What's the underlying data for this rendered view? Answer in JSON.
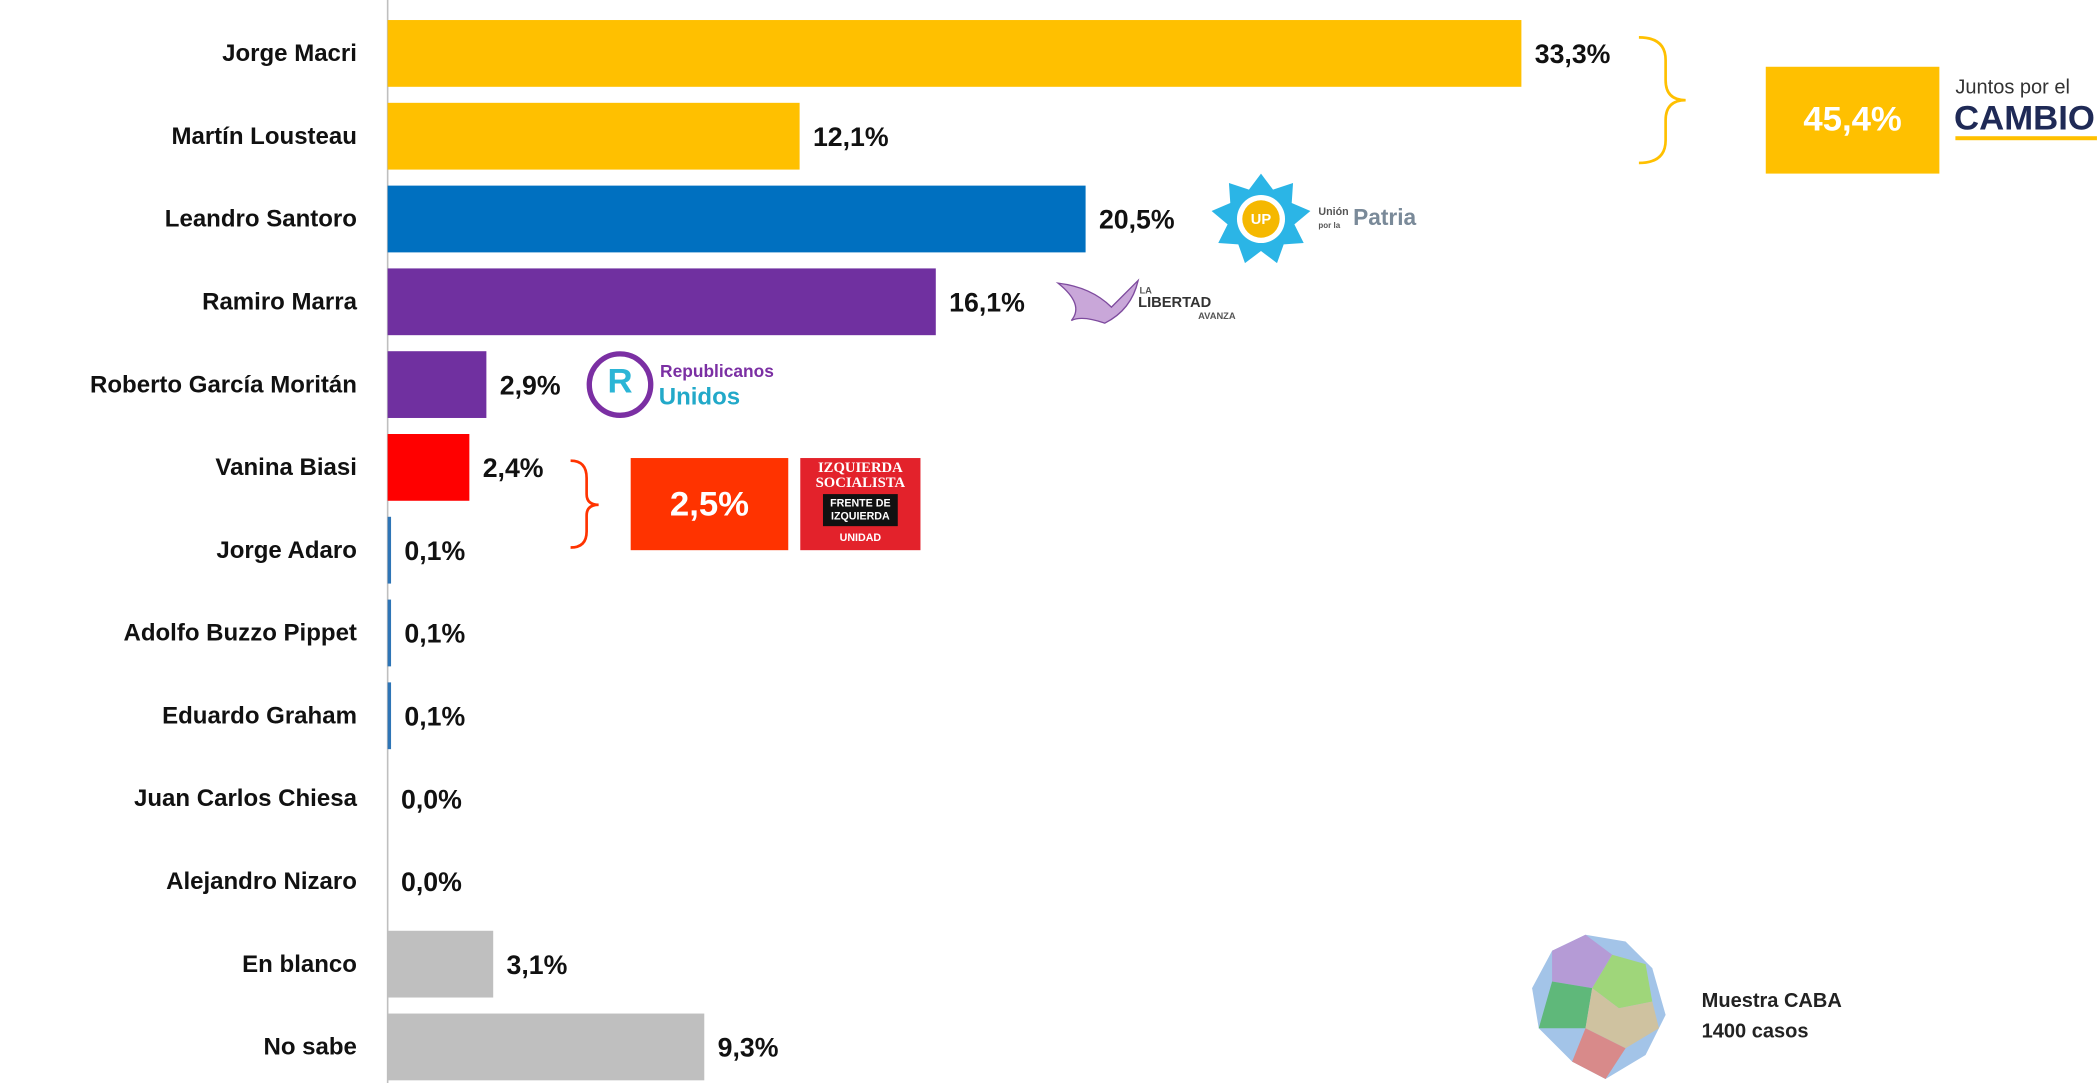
{
  "chart_data": {
    "type": "barh",
    "categories": [
      "Jorge Macri",
      "Martín Lousteau",
      "Leandro Santoro",
      "Ramiro Marra",
      "Roberto García Moritán",
      "Vanina Biasi",
      "Jorge Adaro",
      "Adolfo Buzzo Pippet",
      "Eduardo Graham",
      "Juan Carlos Chiesa",
      "Alejandro Nizaro",
      "En blanco",
      "No sabe"
    ],
    "values": [
      33.3,
      12.1,
      20.5,
      16.1,
      2.9,
      2.4,
      0.1,
      0.1,
      0.1,
      0.0,
      0.0,
      3.1,
      9.3
    ],
    "value_labels": [
      "33,3%",
      "12,1%",
      "20,5%",
      "16,1%",
      "2,9%",
      "2,4%",
      "0,1%",
      "0,1%",
      "0,1%",
      "0,0%",
      "0,0%",
      "3,1%",
      "9,3%"
    ],
    "colors": [
      "#FFC000",
      "#FFC000",
      "#0070C0",
      "#7030A0",
      "#7030A0",
      "#FF0000",
      "#2E75B6",
      "#2E75B6",
      "#2E75B6",
      "#2E75B6",
      "#2E75B6",
      "#BFBFBF",
      "#BFBFBF"
    ],
    "annotations": {
      "jxc_total": "45,4%",
      "jxc_logo_top": "Juntos por el",
      "jxc_logo_bottom": "CAMBIO",
      "up_mark": "UP",
      "up_small": "Unión",
      "up_small2": "por la",
      "up_big": "Patria",
      "lla_1": "LA",
      "lla_2": "LIBERTAD",
      "lla_3": "AVANZA",
      "ru_1": "Republicanos",
      "ru_2": "Unidos",
      "ru_mark": "R",
      "fit_total": "2,5%",
      "fit_1": "IZQUIERDA",
      "fit_2": "SOCIALISTA",
      "fit_3": "FRENTE DE",
      "fit_4": "IZQUIERDA",
      "fit_5": "UNIDAD",
      "sample_1": "Muestra CABA",
      "sample_2": "1400 casos"
    }
  }
}
